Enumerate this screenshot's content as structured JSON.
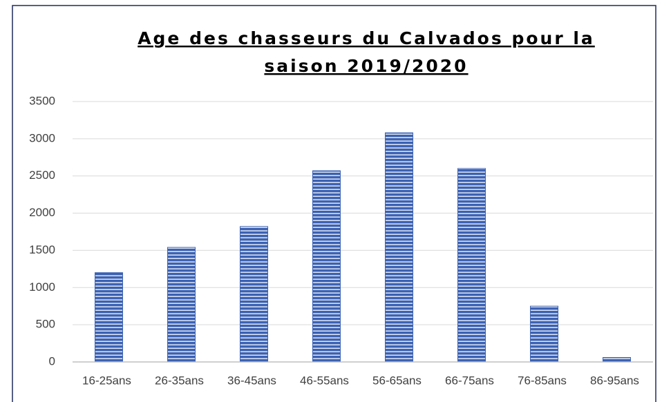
{
  "chart_data": {
    "type": "bar",
    "title": [
      "Age des chasseurs du Calvados pour la",
      "saison 2019/2020"
    ],
    "categories": [
      "16-25ans",
      "26-35ans",
      "36-45ans",
      "46-55ans",
      "56-65ans",
      "66-75ans",
      "76-85ans",
      "86-95ans"
    ],
    "values": [
      1200,
      1540,
      1820,
      2570,
      3080,
      2600,
      750,
      60
    ],
    "color": "#3c62b4",
    "ylim": [
      0,
      3500
    ],
    "yticks": [
      0,
      500,
      1000,
      1500,
      2000,
      2500,
      3000,
      3500
    ],
    "grid": true
  }
}
